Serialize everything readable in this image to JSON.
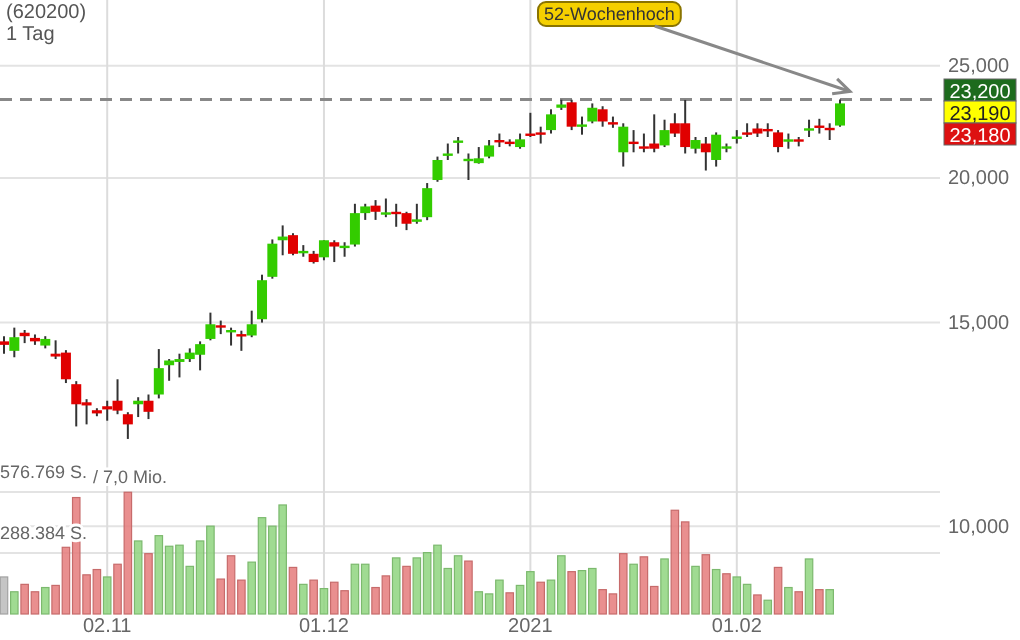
{
  "chart_data": {
    "type": "candlestick",
    "title": "(620200)",
    "subtitle": "1 Tag",
    "categories": [
      null,
      null,
      null,
      null,
      null,
      null,
      null,
      null,
      null,
      null,
      "02.11",
      null,
      null,
      null,
      null,
      null,
      null,
      null,
      null,
      null,
      null,
      null,
      null,
      null,
      null,
      null,
      null,
      null,
      null,
      null,
      null,
      "01.12",
      null,
      null,
      null,
      null,
      null,
      null,
      null,
      null,
      null,
      null,
      null,
      null,
      null,
      null,
      null,
      null,
      null,
      null,
      null,
      "2021",
      null,
      null,
      null,
      null,
      null,
      null,
      null,
      null,
      null,
      null,
      null,
      null,
      null,
      null,
      null,
      null,
      null,
      null,
      null,
      "01.02",
      null,
      null,
      null,
      null,
      null,
      null,
      null,
      null,
      null,
      null
    ],
    "ohlc": [
      [
        14450,
        14600,
        14100,
        14350
      ],
      [
        14180,
        14850,
        14000,
        14570
      ],
      [
        14700,
        14780,
        14400,
        14600
      ],
      [
        14550,
        14650,
        14350,
        14450
      ],
      [
        14330,
        14600,
        14250,
        14520
      ],
      [
        14100,
        14480,
        13950,
        14020
      ],
      [
        14130,
        14200,
        13300,
        13400
      ],
      [
        13270,
        13350,
        12200,
        12750
      ],
      [
        12800,
        12880,
        12250,
        12720
      ],
      [
        12600,
        12650,
        12450,
        12520
      ],
      [
        12700,
        12840,
        12340,
        12620
      ],
      [
        12840,
        13400,
        12500,
        12590
      ],
      [
        12500,
        12550,
        11900,
        12250
      ],
      [
        12750,
        12930,
        12430,
        12840
      ],
      [
        12840,
        13000,
        12380,
        12560
      ],
      [
        13000,
        14230,
        12900,
        13700
      ],
      [
        13780,
        13950,
        13360,
        13910
      ],
      [
        13870,
        14100,
        13450,
        13950
      ],
      [
        13950,
        14250,
        13870,
        14130
      ],
      [
        14070,
        14450,
        13640,
        14370
      ],
      [
        14520,
        15300,
        14480,
        14950
      ],
      [
        14920,
        15060,
        14660,
        14860
      ],
      [
        14720,
        14850,
        14330,
        14780
      ],
      [
        14660,
        14760,
        14180,
        14600
      ],
      [
        14620,
        15360,
        14570,
        14950
      ],
      [
        15100,
        16500,
        15000,
        16320
      ],
      [
        16430,
        17700,
        16370,
        17550
      ],
      [
        17670,
        18200,
        17150,
        17800
      ],
      [
        17850,
        17920,
        17150,
        17200
      ],
      [
        17220,
        17500,
        17100,
        17300
      ],
      [
        17200,
        17300,
        16870,
        16920
      ],
      [
        17080,
        17670,
        16980,
        17670
      ],
      [
        17600,
        17670,
        16920,
        17450
      ],
      [
        17420,
        17600,
        17100,
        17480
      ],
      [
        17520,
        19000,
        17450,
        18650
      ],
      [
        18650,
        19000,
        18400,
        18900
      ],
      [
        18930,
        19140,
        18400,
        18700
      ],
      [
        18620,
        19200,
        18500,
        18680
      ],
      [
        18700,
        19000,
        18150,
        18620
      ],
      [
        18650,
        18700,
        18030,
        18260
      ],
      [
        18330,
        19000,
        18260,
        18420
      ],
      [
        18500,
        19800,
        18390,
        19600
      ],
      [
        19920,
        20870,
        19850,
        20730
      ],
      [
        20900,
        21420,
        20730,
        21000
      ],
      [
        21450,
        21700,
        21000,
        21550
      ],
      [
        20700,
        21000,
        19920,
        20780
      ],
      [
        20600,
        21270,
        20580,
        20800
      ],
      [
        20870,
        21570,
        20800,
        21340
      ],
      [
        21570,
        21850,
        21270,
        21480
      ],
      [
        21500,
        21600,
        21300,
        21420
      ],
      [
        21270,
        21850,
        21200,
        21600
      ],
      [
        21850,
        22770,
        21700,
        21780
      ],
      [
        21900,
        22150,
        21420,
        21800
      ],
      [
        22000,
        22930,
        21850,
        22700
      ],
      [
        23000,
        23370,
        22900,
        23150
      ],
      [
        23250,
        23370,
        22000,
        22150
      ],
      [
        22150,
        22600,
        21800,
        22250
      ],
      [
        22380,
        23200,
        22300,
        23000
      ],
      [
        22930,
        23070,
        22150,
        22380
      ],
      [
        22350,
        22600,
        22100,
        22250
      ],
      [
        21050,
        22300,
        20460,
        22150
      ],
      [
        21500,
        22000,
        21050,
        21400
      ],
      [
        21300,
        21850,
        21050,
        21220
      ],
      [
        21420,
        22700,
        21050,
        21200
      ],
      [
        21340,
        22460,
        21270,
        22000
      ],
      [
        22300,
        22750,
        21700,
        21850
      ],
      [
        22300,
        23360,
        21000,
        21270
      ],
      [
        21200,
        21700,
        21000,
        21570
      ],
      [
        21420,
        21700,
        20300,
        21050
      ],
      [
        20730,
        21900,
        20460,
        21800
      ],
      [
        21220,
        21420,
        21050,
        21300
      ],
      [
        21650,
        22000,
        21420,
        21720
      ],
      [
        21900,
        22300,
        21700,
        21820
      ],
      [
        22070,
        22300,
        21700,
        21850
      ],
      [
        22050,
        22300,
        21700,
        21950
      ],
      [
        21900,
        22000,
        21050,
        21270
      ],
      [
        21500,
        21850,
        21200,
        21600
      ],
      [
        21600,
        21700,
        21300,
        21520
      ],
      [
        22000,
        22460,
        21700,
        22080
      ],
      [
        22200,
        22500,
        21850,
        22100
      ],
      [
        22100,
        22300,
        21570,
        22030
      ],
      [
        22200,
        23380,
        22150,
        23200
      ]
    ],
    "colors": [
      "#e00000",
      "#33cc00",
      "#e00000",
      "#e00000",
      "#33cc00",
      "#e00000",
      "#e00000",
      "#e00000",
      "#e00000",
      "#e00000",
      "#e00000",
      "#e00000",
      "#e00000",
      "#33cc00",
      "#e00000",
      "#33cc00",
      "#33cc00",
      "#33cc00",
      "#33cc00",
      "#33cc00",
      "#33cc00",
      "#e00000",
      "#33cc00",
      "#e00000",
      "#33cc00",
      "#33cc00",
      "#33cc00",
      "#33cc00",
      "#e00000",
      "#33cc00",
      "#e00000",
      "#33cc00",
      "#e00000",
      "#33cc00",
      "#33cc00",
      "#33cc00",
      "#e00000",
      "#33cc00",
      "#e00000",
      "#e00000",
      "#33cc00",
      "#33cc00",
      "#33cc00",
      "#33cc00",
      "#33cc00",
      "#33cc00",
      "#33cc00",
      "#33cc00",
      "#e00000",
      "#e00000",
      "#33cc00",
      "#e00000",
      "#e00000",
      "#33cc00",
      "#33cc00",
      "#e00000",
      "#33cc00",
      "#33cc00",
      "#e00000",
      "#e00000",
      "#33cc00",
      "#e00000",
      "#e00000",
      "#e00000",
      "#33cc00",
      "#e00000",
      "#e00000",
      "#33cc00",
      "#e00000",
      "#33cc00",
      "#33cc00",
      "#33cc00",
      "#e00000",
      "#e00000",
      "#e00000",
      "#e00000",
      "#33cc00",
      "#e00000",
      "#33cc00",
      "#e00000",
      "#e00000",
      "#33cc00"
    ],
    "series": [
      {
        "type": "bar",
        "axis": "y2",
        "values": [
          175,
          105,
          140,
          105,
          125,
          135,
          315,
          550,
          185,
          210,
          175,
          235,
          575,
          345,
          285,
          370,
          320,
          325,
          225,
          345,
          415,
          165,
          275,
          160,
          245,
          455,
          415,
          515,
          220,
          140,
          160,
          120,
          150,
          110,
          235,
          235,
          125,
          180,
          265,
          225,
          265,
          290,
          325,
          215,
          275,
          250,
          105,
          95,
          160,
          100,
          135,
          200,
          150,
          160,
          275,
          200,
          205,
          215,
          115,
          95,
          285,
          235,
          270,
          130,
          260,
          490,
          435,
          225,
          280,
          210,
          190,
          175,
          140,
          90,
          65,
          220,
          125,
          105,
          260,
          115,
          115,
          null
        ],
        "colors": [
          "#bbbbbb",
          "#8fd57f",
          "#e57b7b",
          "#e57b7b",
          "#8fd57f",
          "#e57b7b",
          "#e57b7b",
          "#e57b7b",
          "#e57b7b",
          "#e57b7b",
          "#8fd57f",
          "#e57b7b",
          "#e57b7b",
          "#8fd57f",
          "#e57b7b",
          "#8fd57f",
          "#8fd57f",
          "#8fd57f",
          "#8fd57f",
          "#8fd57f",
          "#8fd57f",
          "#e57b7b",
          "#e57b7b",
          "#e57b7b",
          "#8fd57f",
          "#8fd57f",
          "#8fd57f",
          "#8fd57f",
          "#e57b7b",
          "#8fd57f",
          "#e57b7b",
          "#8fd57f",
          "#e57b7b",
          "#e57b7b",
          "#8fd57f",
          "#8fd57f",
          "#e57b7b",
          "#e57b7b",
          "#8fd57f",
          "#e57b7b",
          "#8fd57f",
          "#8fd57f",
          "#8fd57f",
          "#8fd57f",
          "#8fd57f",
          "#e57b7b",
          "#8fd57f",
          "#8fd57f",
          "#8fd57f",
          "#e57b7b",
          "#8fd57f",
          "#8fd57f",
          "#e57b7b",
          "#8fd57f",
          "#8fd57f",
          "#e57b7b",
          "#8fd57f",
          "#8fd57f",
          "#e57b7b",
          "#e57b7b",
          "#e57b7b",
          "#8fd57f",
          "#e57b7b",
          "#e57b7b",
          "#8fd57f",
          "#e57b7b",
          "#e57b7b",
          "#8fd57f",
          "#e57b7b",
          "#8fd57f",
          "#e57b7b",
          "#8fd57f",
          "#8fd57f",
          "#e57b7b",
          "#8fd57f",
          "#e57b7b",
          "#8fd57f",
          "#e57b7b",
          "#8fd57f",
          "#e57b7b",
          "#8fd57f",
          "#8fd57f"
        ]
      }
    ],
    "log": "y",
    "ylim": [
      8400,
      28500
    ],
    "yticks": [
      {
        "value": 10000,
        "label": "10,000"
      },
      {
        "value": 15000,
        "label": "15,000"
      },
      {
        "value": 20000,
        "label": "20,000"
      },
      {
        "value": 25000,
        "label": "25,000"
      }
    ],
    "y2lim": [
      0,
      2900
    ],
    "y2ticks": [
      {
        "value": 288.384,
        "label": "288.384 S."
      },
      {
        "value": 576.769,
        "label": "576.769 S."
      }
    ],
    "grid": true,
    "ref_lines": [
      {
        "axis": "y",
        "value": 23380,
        "label": "52-Wochenhoch",
        "color": "#888888",
        "line_style": "dashed"
      }
    ],
    "annotations": [
      "23,200",
      "23,190",
      "23,180",
      "/ 7,0 Mio."
    ]
  }
}
